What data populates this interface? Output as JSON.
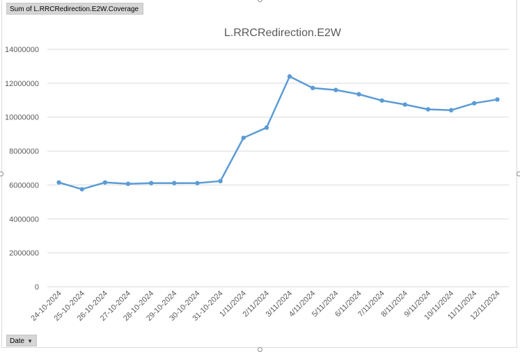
{
  "field_button": {
    "label": "Sum of L.RRCRedirection.E2W.Coverage"
  },
  "axis_field_button": {
    "label": "Date",
    "dropdown_icon": "dropdown-arrow-icon"
  },
  "colors": {
    "series": "#5b9bd5",
    "grid": "#d9d9d9",
    "text": "#595959"
  },
  "chart_data": {
    "type": "line",
    "title": "L.RRCRedirection.E2W",
    "xlabel": "",
    "ylabel": "",
    "ylim": [
      0,
      14000000
    ],
    "yticks": [
      "0",
      "2000000",
      "4000000",
      "6000000",
      "8000000",
      "10000000",
      "12000000",
      "14000000"
    ],
    "grid": true,
    "categories": [
      "24-10-2024",
      "25-10-2024",
      "26-10-2024",
      "27-10-2024",
      "28-10-2024",
      "29-10-2024",
      "30-10-2024",
      "31-10-2024",
      "1/11/2024",
      "2/11/2024",
      "3/11/2024",
      "4/11/2024",
      "5/11/2024",
      "6/11/2024",
      "7/11/2024",
      "8/11/2024",
      "9/11/2024",
      "10/11/2024",
      "11/11/2024",
      "12/11/2024"
    ],
    "series": [
      {
        "name": "Sum of L.RRCRedirection.E2W.Coverage",
        "values": [
          6150000,
          5750000,
          6150000,
          6070000,
          6110000,
          6110000,
          6110000,
          6230000,
          8780000,
          9380000,
          12400000,
          11720000,
          11600000,
          11350000,
          10980000,
          10740000,
          10460000,
          10410000,
          10820000,
          11040000
        ]
      }
    ]
  }
}
